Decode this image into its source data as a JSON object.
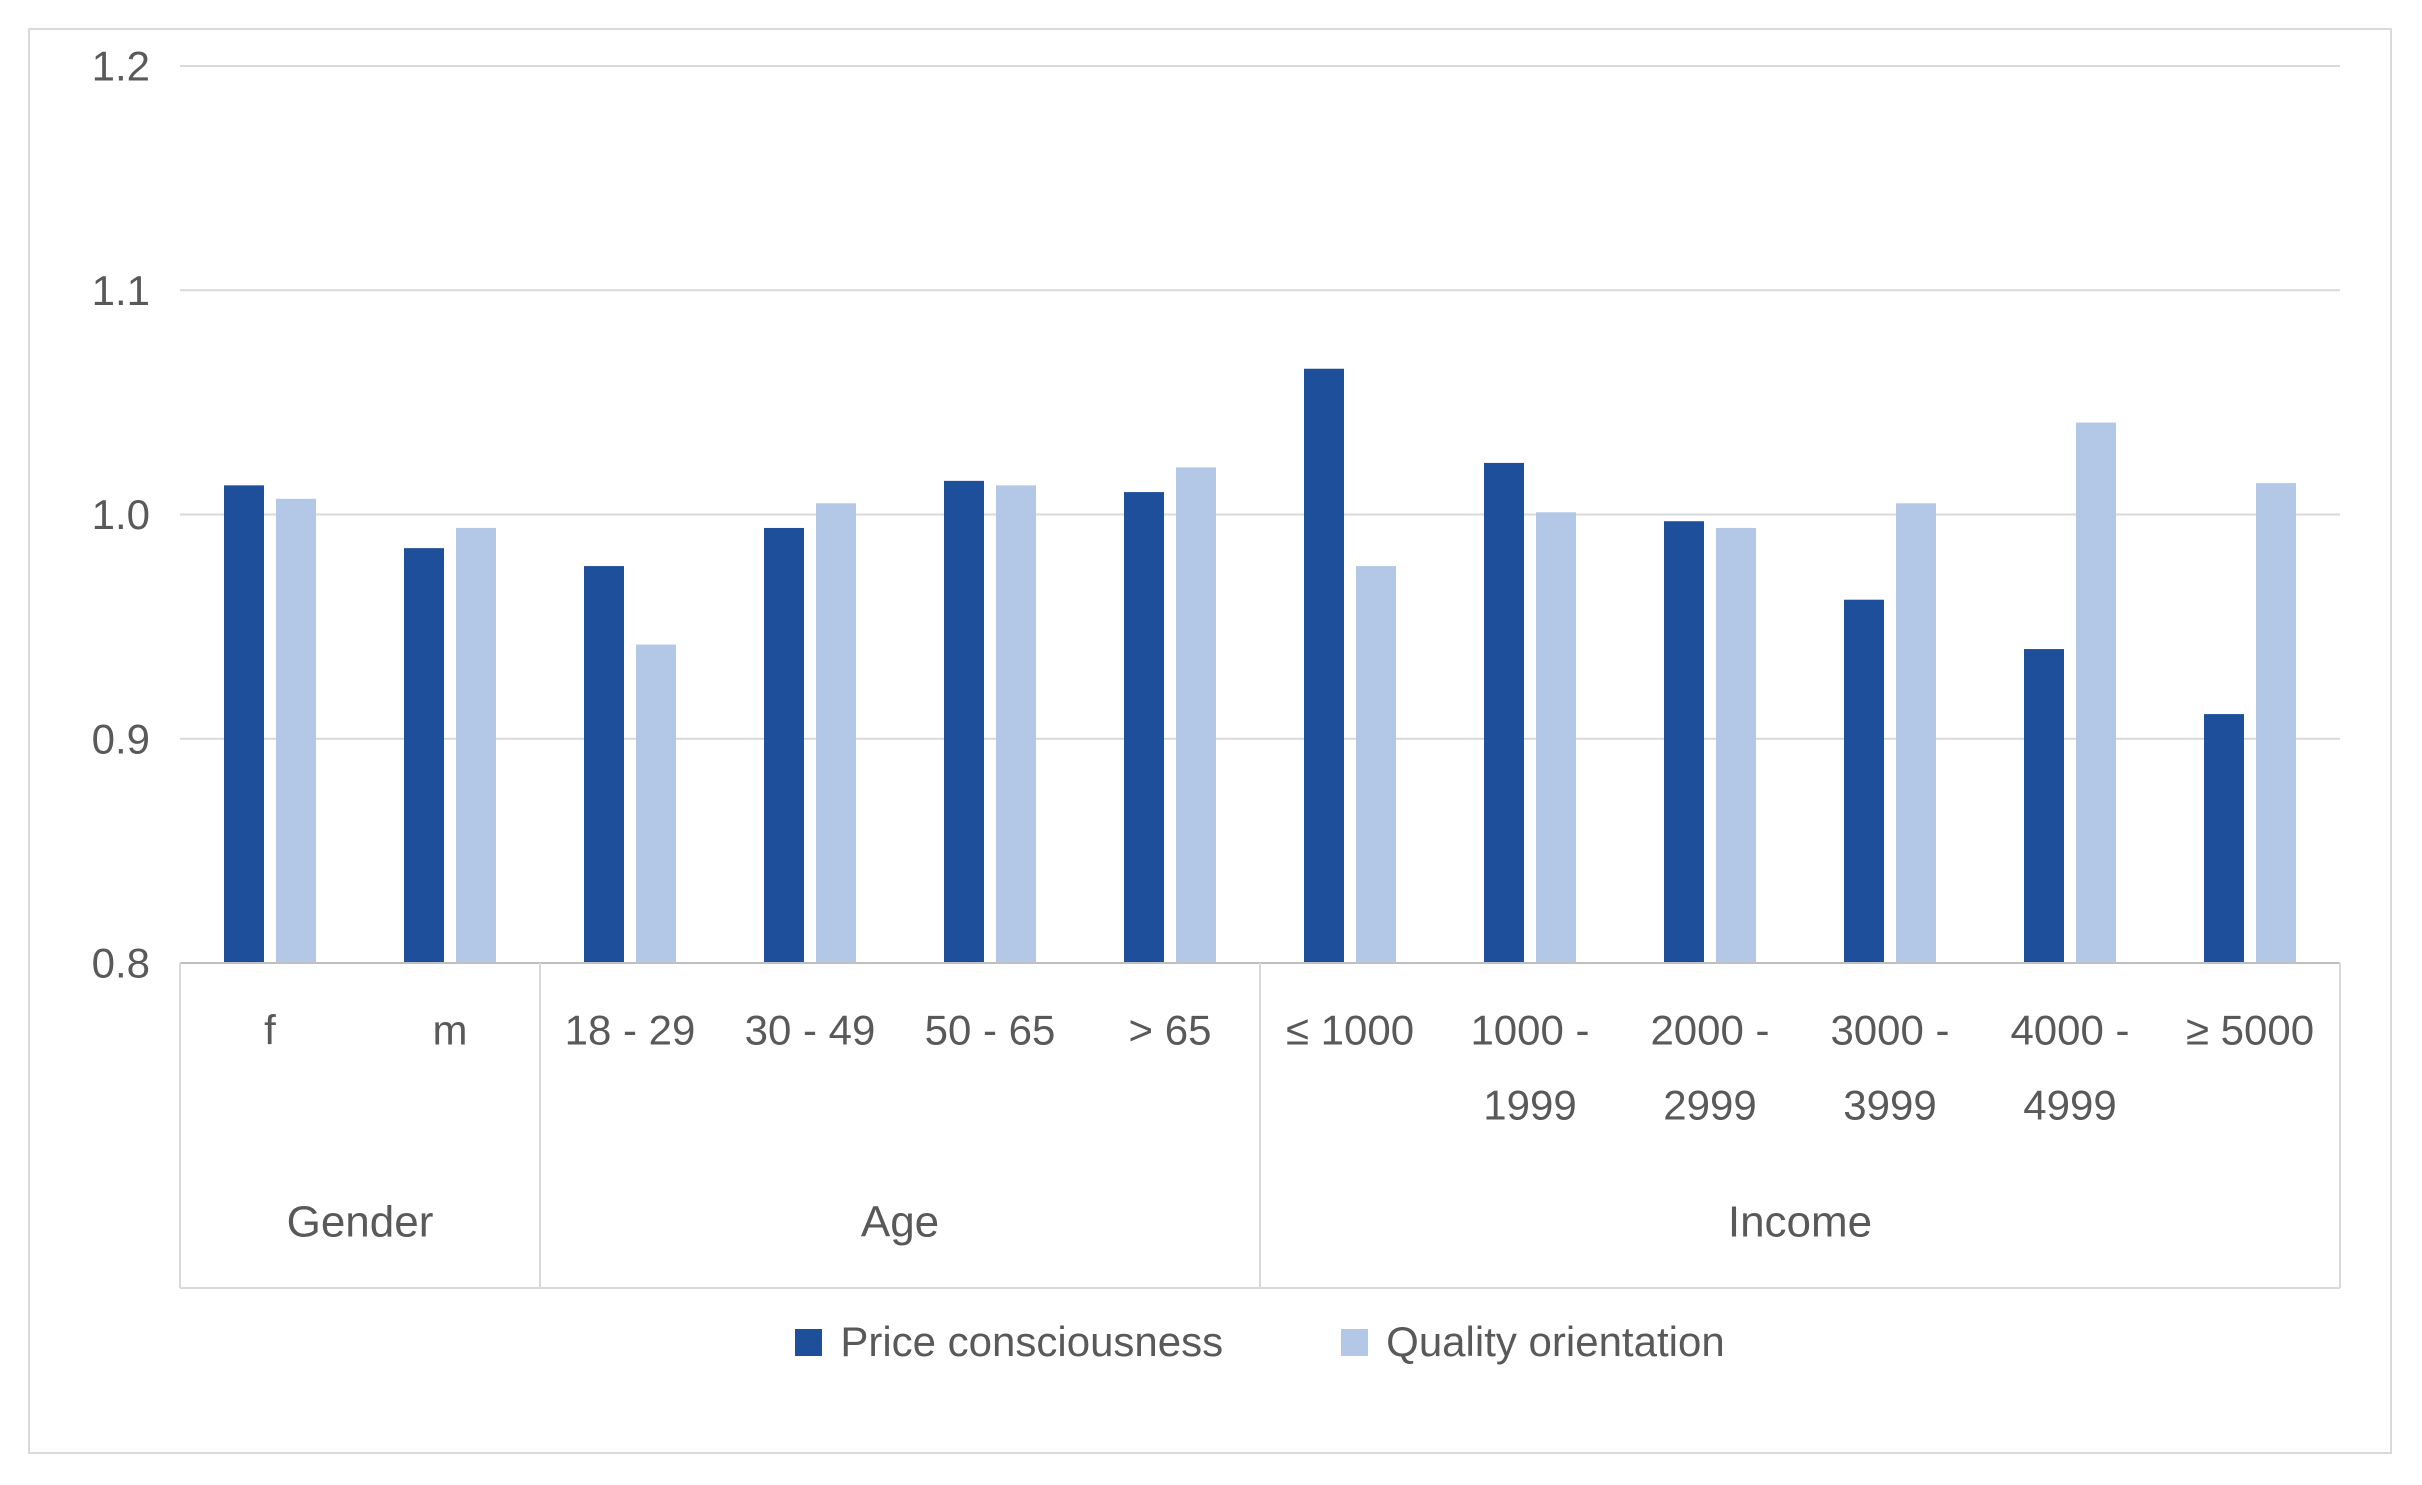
{
  "chart_data": {
    "type": "bar",
    "title": "",
    "xlabel": "",
    "ylabel": "",
    "ylim": [
      0.8,
      1.2
    ],
    "ytick_values": [
      0.8,
      0.9,
      1.0,
      1.1,
      1.2
    ],
    "ytick_labels": [
      "0.8",
      "0.9",
      "1.0",
      "1.1",
      "1.2"
    ],
    "grid": true,
    "legend_position": "bottom",
    "categories": [
      "f",
      "m",
      "18 - 29",
      "30 - 49",
      "50 - 65",
      "> 65",
      "≤ 1000",
      "1000 - 1999",
      "2000 - 2999",
      "3000 - 3999",
      "4000 - 4999",
      "≥ 5000"
    ],
    "category_label_lines": [
      [
        "f"
      ],
      [
        "m"
      ],
      [
        "18 - 29"
      ],
      [
        "30 - 49"
      ],
      [
        "50 - 65"
      ],
      [
        "> 65"
      ],
      [
        "≤ 1000"
      ],
      [
        "1000 -",
        "1999"
      ],
      [
        "2000 -",
        "2999"
      ],
      [
        "3000 -",
        "3999"
      ],
      [
        "4000 -",
        "4999"
      ],
      [
        "≥ 5000"
      ]
    ],
    "groups": [
      {
        "label": "Gender",
        "count": 2
      },
      {
        "label": "Age",
        "count": 4
      },
      {
        "label": "Income",
        "count": 6
      }
    ],
    "series": [
      {
        "name": "Price consciousness",
        "color": "#1d4f9b",
        "values": [
          1.013,
          0.985,
          0.977,
          0.994,
          1.015,
          1.01,
          1.065,
          1.023,
          0.997,
          0.962,
          0.94,
          0.911
        ]
      },
      {
        "name": "Quality orientation",
        "color": "#b3c7e6",
        "values": [
          1.007,
          0.994,
          0.942,
          1.005,
          1.013,
          1.021,
          0.977,
          1.001,
          0.994,
          1.005,
          1.041,
          1.014
        ]
      }
    ]
  },
  "legend": {
    "items": [
      {
        "label": "Price consciousness",
        "color": "#1d4f9b"
      },
      {
        "label": "Quality orientation",
        "color": "#b3c7e6"
      }
    ]
  },
  "colors": {
    "background": "#ffffff",
    "figure_border": "#d9d9d9",
    "gridline": "#d9d9d9",
    "axis_line": "#bfbfbf",
    "band_line": "#d9d9d9",
    "text": "#595959"
  }
}
